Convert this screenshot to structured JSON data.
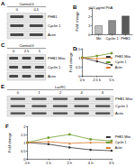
{
  "blots": [
    {
      "panel": "A",
      "title": "Control-lt",
      "lanes": [
        "0",
        "0.5"
      ],
      "rows": [
        "PHB1",
        "Cyclin 1",
        "Actin"
      ]
    },
    {
      "panel": "C",
      "title": "Control-lt",
      "lanes": [
        "0",
        "2.5",
        "5"
      ],
      "rows": [
        "PHB1 Mito",
        "Cyclin 1",
        "Actin"
      ]
    },
    {
      "panel": "E",
      "title": "LucRC",
      "lanes": [
        "0",
        "1",
        "2",
        "4",
        "6"
      ],
      "rows": [
        "PHB1 Mito",
        "Cyclin 1",
        "Actin"
      ]
    }
  ],
  "chart_data": [
    {
      "panel": "B",
      "type": "bar",
      "title": "0.5 μg/ml PhA",
      "ylabel": "Fold change",
      "categories": [
        "Mit",
        "Cyclin 1",
        "PHB1"
      ],
      "values": [
        1,
        1.6,
        2.1
      ],
      "colors": [
        "#bfbfbf",
        "#8c8c8c",
        "#595959"
      ],
      "ylim": [
        0,
        3
      ],
      "yticks": [
        0,
        1,
        2,
        3
      ],
      "grid": false
    },
    {
      "panel": "D",
      "type": "line",
      "ylabel": "Fold change",
      "categories": [
        "0 h",
        "2.5 h",
        "5 h"
      ],
      "series": [
        {
          "name": "PHB1 Mito",
          "color": "#333333",
          "marker": "circle",
          "values": [
            1,
            0.8,
            0.6
          ]
        },
        {
          "name": "Cyclin 1",
          "color": "#6f9a2e",
          "marker": "rect",
          "values": [
            1,
            1.1,
            1.25
          ]
        },
        {
          "name": "Actin",
          "color": "#d9782a",
          "marker": "triangle",
          "values": [
            1,
            0.95,
            1
          ]
        }
      ],
      "ylim": [
        0,
        1.5
      ],
      "yticks": [
        0,
        0.5,
        1,
        1.5
      ],
      "grid": false,
      "legend": "right"
    },
    {
      "panel": "F",
      "type": "line",
      "ylabel": "Fold change",
      "categories": [
        "0 h",
        "1 h",
        "2 h",
        "4 h",
        "6 h"
      ],
      "series": [
        {
          "name": "PHB1 Mito",
          "color": "#333333",
          "marker": "circle",
          "values": [
            1,
            0.9,
            0.7,
            0.55,
            0.5
          ]
        },
        {
          "name": "Cyclin 1",
          "color": "#6f9a2e",
          "marker": "rect",
          "values": [
            1,
            1.3,
            1.5,
            1.2,
            1.1
          ]
        },
        {
          "name": "Actin",
          "color": "#d9782a",
          "marker": "triangle",
          "values": [
            1,
            1.05,
            0.95,
            1,
            1
          ]
        }
      ],
      "ylim": [
        0,
        2
      ],
      "yticks": [
        0,
        0.5,
        1,
        1.5,
        2
      ],
      "grid": false,
      "legend": "right"
    }
  ]
}
